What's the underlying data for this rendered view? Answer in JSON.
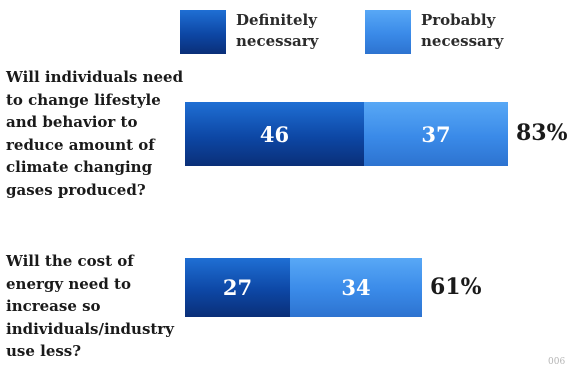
{
  "chart_data": {
    "type": "bar",
    "orientation": "horizontal",
    "stacked": true,
    "legend_position": "top",
    "categories": [
      "Will individuals need to change lifestyle and behavior to reduce amount of climate changing gases produced?",
      "Will the cost of energy need to increase so individuals/industry use less?"
    ],
    "series": [
      {
        "name": "Definitely necessary",
        "values": [
          46,
          27
        ],
        "color": "#0d47a5"
      },
      {
        "name": "Probably necessary",
        "values": [
          37,
          34
        ],
        "color": "#3a8ae8"
      }
    ],
    "totals": [
      "83%",
      "61%"
    ],
    "xlim": [
      0,
      100
    ]
  },
  "page_number": "006"
}
